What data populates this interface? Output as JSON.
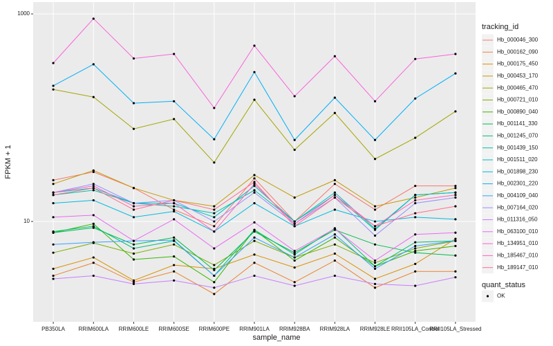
{
  "chart_data": {
    "type": "line",
    "x_label": "sample_name",
    "y_label": "FPKM + 1",
    "categories": [
      "PB350LA",
      "RRIM600LA",
      "RRIM600LE",
      "RRIM600SE",
      "RRIM600PE",
      "RRIM901LA",
      "RRIM928BA",
      "RRIM928LA",
      "RRIM928LE",
      "RRII105LA_Control",
      "RRII105LA_Stressed"
    ],
    "y_log_scale": true,
    "ylim": [
      1.08,
      1300
    ],
    "yticks": [
      10,
      1000
    ],
    "grid": true,
    "legend_title": "tracking_id",
    "series": [
      {
        "name": "Hb_000046_300",
        "color": "#F8766D",
        "values": [
          25,
          30,
          21,
          13,
          9,
          26,
          10,
          23,
          13,
          22,
          22
        ]
      },
      {
        "name": "Hb_000162_090",
        "color": "#EA8331",
        "values": [
          3.0,
          4.0,
          2.6,
          3.3,
          2.0,
          4.0,
          2.6,
          4.2,
          2.3,
          3.3,
          3.3
        ]
      },
      {
        "name": "Hb_000175_450",
        "color": "#D89000",
        "values": [
          3.5,
          4.5,
          2.7,
          3.8,
          3.5,
          4.8,
          3.6,
          4.9,
          2.8,
          3.9,
          6.8
        ]
      },
      {
        "name": "Hb_000453_170",
        "color": "#C09B00",
        "values": [
          23,
          31,
          21,
          16,
          14,
          28,
          17,
          25,
          14,
          17,
          21
        ]
      },
      {
        "name": "Hb_000465_470",
        "color": "#A3A500",
        "values": [
          187,
          158,
          78,
          97,
          37,
          149,
          49,
          111,
          40,
          64,
          115
        ]
      },
      {
        "name": "Hb_000721_010",
        "color": "#7CAE00",
        "values": [
          5.0,
          6.2,
          4.9,
          6.0,
          3.8,
          6.5,
          4.5,
          6.0,
          4.0,
          5.5,
          6.5
        ]
      },
      {
        "name": "Hb_000890_040",
        "color": "#39B600",
        "values": [
          7.8,
          9.5,
          4.3,
          4.6,
          2.6,
          8.3,
          4.2,
          7.0,
          3.7,
          5.2,
          5.8
        ]
      },
      {
        "name": "Hb_001141_330",
        "color": "#00BB4E",
        "values": [
          7.8,
          8.7,
          6.0,
          7.0,
          3.4,
          8.0,
          5.0,
          8.3,
          6.0,
          5.0,
          4.7
        ]
      },
      {
        "name": "Hb_001245_070",
        "color": "#00BF7D",
        "values": [
          8.0,
          9.0,
          5.5,
          6.5,
          3.0,
          8.3,
          4.8,
          8.6,
          3.7,
          6.3,
          6.5
        ]
      },
      {
        "name": "Hb_001439_150",
        "color": "#00C1A3",
        "values": [
          18,
          20,
          15,
          14,
          12,
          20,
          10,
          18,
          8.3,
          18,
          19
        ]
      },
      {
        "name": "Hb_001511_020",
        "color": "#00BFC4",
        "values": [
          19,
          21,
          15,
          15,
          11,
          22,
          10,
          19,
          8.5,
          18,
          19
        ]
      },
      {
        "name": "Hb_001898_230",
        "color": "#00BAE0",
        "values": [
          15,
          16,
          11,
          12.5,
          8,
          15,
          9,
          13,
          10,
          11,
          10.5
        ]
      },
      {
        "name": "Hb_002301_220",
        "color": "#00B0F6",
        "values": [
          203,
          327,
          138,
          144,
          62,
          275,
          61,
          156,
          61,
          153,
          267
        ]
      },
      {
        "name": "Hb_004109_040",
        "color": "#35A2FF",
        "values": [
          6.0,
          6.3,
          6.5,
          6.6,
          3.0,
          7.0,
          4.5,
          7.5,
          3.5,
          5.8,
          6.5
        ]
      },
      {
        "name": "Hb_007164_020",
        "color": "#9590FF",
        "values": [
          19,
          23,
          15,
          16,
          10,
          19,
          9.5,
          17,
          7.3,
          15,
          17
        ]
      },
      {
        "name": "Hb_011316_050",
        "color": "#C77CFF",
        "values": [
          2.8,
          3.0,
          2.5,
          2.7,
          2.3,
          3.0,
          2.4,
          3.0,
          2.5,
          2.4,
          2.9
        ]
      },
      {
        "name": "Hb_063100_010",
        "color": "#E76BF3",
        "values": [
          11,
          11.5,
          6.5,
          10.5,
          5.5,
          9.8,
          5.2,
          8.5,
          4.2,
          7.5,
          7.8
        ]
      },
      {
        "name": "Hb_134951_010",
        "color": "#FA62DB",
        "values": [
          336,
          900,
          372,
          411,
          124,
          494,
          161,
          391,
          144,
          368,
          411
        ]
      },
      {
        "name": "Hb_185467_010",
        "color": "#FF62BC",
        "values": [
          19,
          22,
          14,
          15,
          8,
          23,
          9.5,
          18,
          9,
          16,
          18
        ]
      },
      {
        "name": "Hb_189147_010",
        "color": "#FF6C91",
        "values": [
          18,
          21,
          13,
          16,
          13,
          24,
          9,
          17,
          9,
          12,
          14
        ]
      }
    ],
    "point_legend": {
      "title": "quant_status",
      "items": [
        "OK"
      ],
      "color": "#000000"
    }
  }
}
